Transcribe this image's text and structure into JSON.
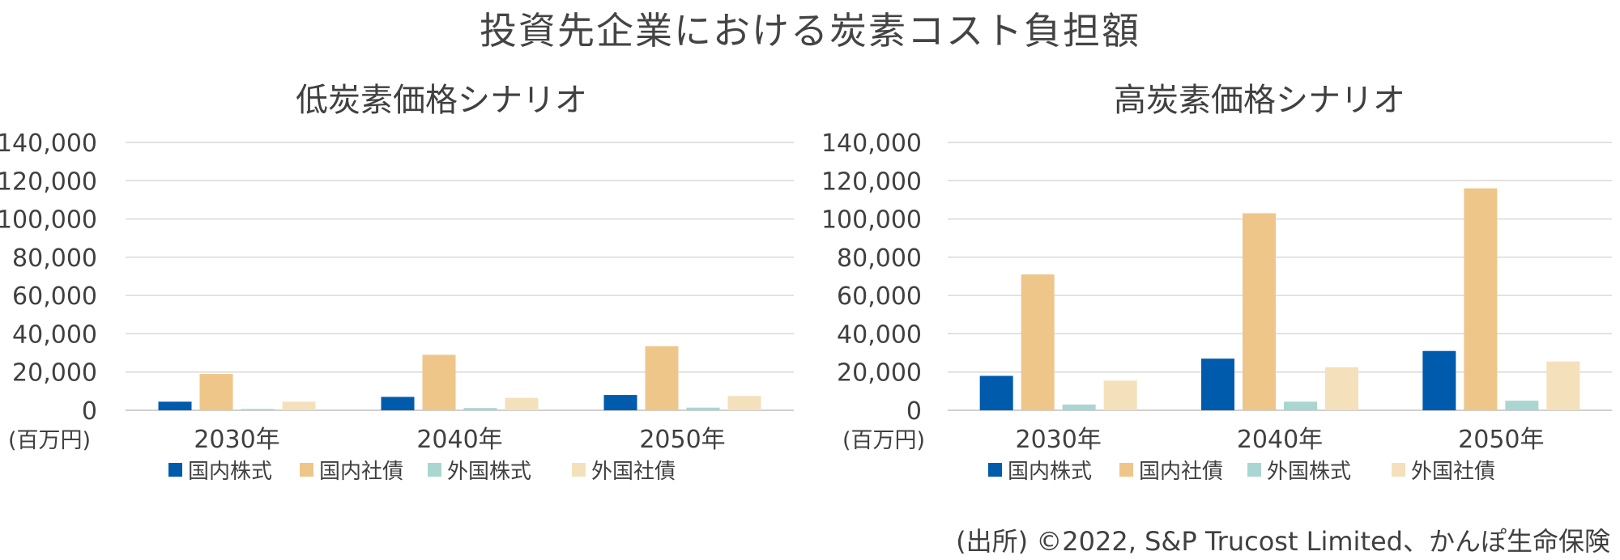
{
  "title": "投資先企業における炭素コスト負担額",
  "source": "(出所) ©2022, S&P Trucost Limited、かんぽ生命保険",
  "colors": {
    "domestic_equity": "#005bac",
    "domestic_bonds": "#efc68a",
    "foreign_equity": "#a9d6d0",
    "foreign_bonds": "#f4e1bb",
    "grid": "#d9d9d9",
    "axis": "#bfbfbf"
  },
  "chart_data": [
    {
      "type": "bar",
      "title": "低炭素価格シナリオ",
      "unit_label": "(百万円)",
      "categories": [
        "2030年",
        "2040年",
        "2050年"
      ],
      "ylim": [
        0,
        140000
      ],
      "yticks": [
        0,
        20000,
        40000,
        60000,
        80000,
        100000,
        120000,
        140000
      ],
      "ytick_labels": [
        "0",
        "20,000",
        "40,000",
        "60,000",
        "80,000",
        "100,000",
        "120,000",
        "140,000"
      ],
      "grid": true,
      "legend_position": "bottom",
      "series": [
        {
          "name": "国内株式",
          "color_key": "domestic_equity",
          "values": [
            4500,
            7000,
            8000
          ]
        },
        {
          "name": "国内社債",
          "color_key": "domestic_bonds",
          "values": [
            19000,
            29000,
            33500
          ]
        },
        {
          "name": "外国株式",
          "color_key": "foreign_equity",
          "values": [
            700,
            1200,
            1400
          ]
        },
        {
          "name": "外国社債",
          "color_key": "foreign_bonds",
          "values": [
            4500,
            6500,
            7500
          ]
        }
      ]
    },
    {
      "type": "bar",
      "title": "高炭素価格シナリオ",
      "unit_label": "(百万円)",
      "categories": [
        "2030年",
        "2040年",
        "2050年"
      ],
      "ylim": [
        0,
        140000
      ],
      "yticks": [
        0,
        20000,
        40000,
        60000,
        80000,
        100000,
        120000,
        140000
      ],
      "ytick_labels": [
        "0",
        "20,000",
        "40,000",
        "60,000",
        "80,000",
        "100,000",
        "120,000",
        "140,000"
      ],
      "grid": true,
      "legend_position": "bottom",
      "series": [
        {
          "name": "国内株式",
          "color_key": "domestic_equity",
          "values": [
            18000,
            27000,
            31000
          ]
        },
        {
          "name": "国内社債",
          "color_key": "domestic_bonds",
          "values": [
            71000,
            103000,
            116000
          ]
        },
        {
          "name": "外国株式",
          "color_key": "foreign_equity",
          "values": [
            3000,
            4500,
            5000
          ]
        },
        {
          "name": "外国社債",
          "color_key": "foreign_bonds",
          "values": [
            15500,
            22500,
            25500
          ]
        }
      ]
    }
  ]
}
